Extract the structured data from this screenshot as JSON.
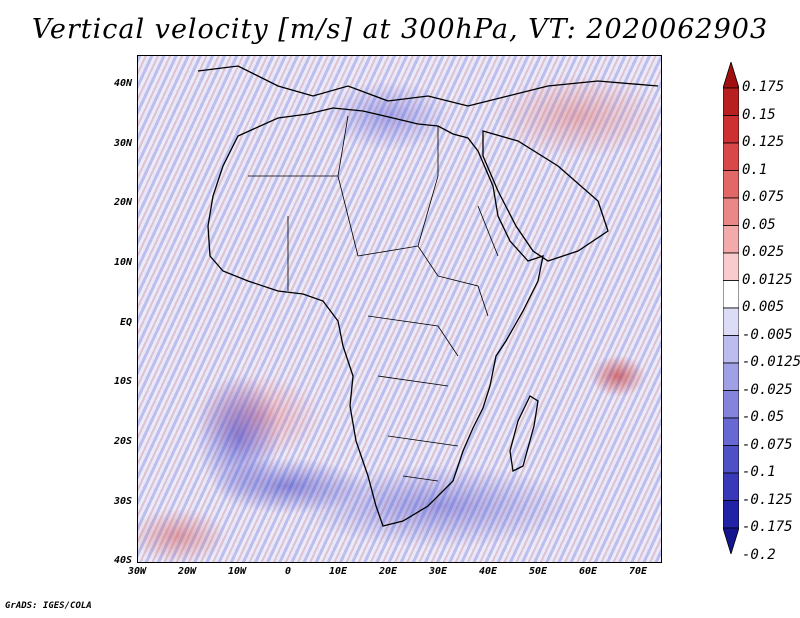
{
  "title": "Vertical velocity [m/s] at 300hPa, VT: 2020062903",
  "latitude_labels": [
    "40N",
    "30N",
    "20N",
    "10N",
    "EQ",
    "10S",
    "20S",
    "30S",
    "40S"
  ],
  "longitude_labels": [
    "30W",
    "20W",
    "10W",
    "0",
    "10E",
    "20E",
    "30E",
    "40E",
    "50E",
    "60E",
    "70E"
  ],
  "colorbar": {
    "labels": [
      "0.175",
      "0.15",
      "0.125",
      "0.1",
      "0.075",
      "0.05",
      "0.025",
      "0.0125",
      "0.005",
      "-0.005",
      "-0.0125",
      "-0.025",
      "-0.05",
      "-0.075",
      "-0.1",
      "-0.125",
      "-0.175",
      "-0.2"
    ],
    "colors": [
      "#a01010",
      "#b82020",
      "#cc3030",
      "#d84848",
      "#e26868",
      "#ea8888",
      "#f2aaaa",
      "#f8cccc",
      "#ffffff",
      "#dcdcf6",
      "#bcbcee",
      "#a0a0e6",
      "#8484dc",
      "#6868d2",
      "#5050c6",
      "#3838b8",
      "#2222a6",
      "#14148e"
    ]
  },
  "credit": "GrADS: IGES/COLA"
}
